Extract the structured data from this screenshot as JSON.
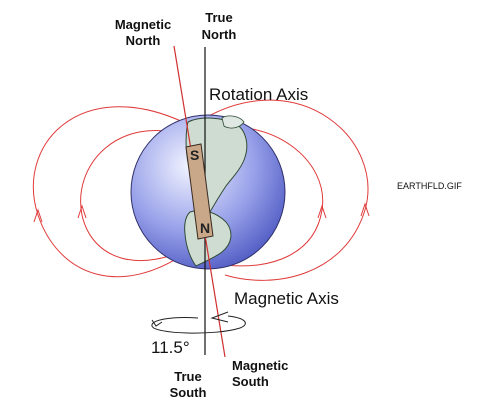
{
  "labels": {
    "magnetic_north_line1": "Magnetic",
    "magnetic_north_line2": "North",
    "true_north_line1": "True",
    "true_north_line2": "North",
    "rotation_axis": "Rotation Axis",
    "filename": "EARTHFLD.GIF",
    "magnetic_axis": "Magnetic Axis",
    "angle": "11.5°",
    "magnetic_south_line1": "Magnetic",
    "magnetic_south_line2": "South",
    "true_south_line1": "True",
    "true_south_line2": "South"
  },
  "magnet": {
    "north_pole": "N",
    "south_pole": "S"
  },
  "colors": {
    "field_lines": "#e03a3a",
    "globe_light": "#eef0ff",
    "globe_dark": "#4a55c0",
    "land": "#cfdcd2",
    "land_dark": "#2f4a36",
    "magnet": "#c9a88a"
  }
}
